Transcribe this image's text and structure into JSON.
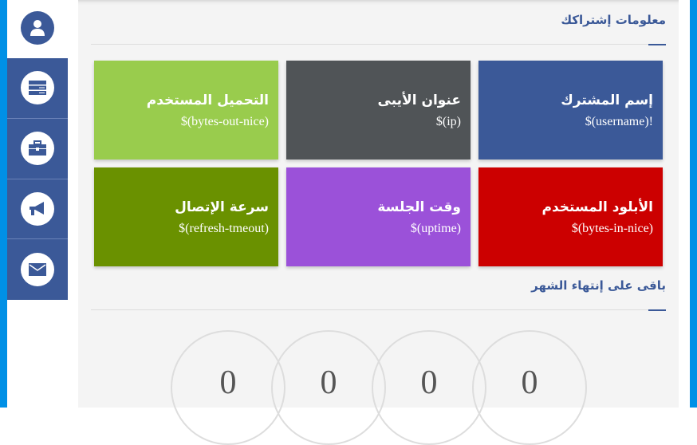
{
  "sidebar": {
    "items": [
      {
        "icon": "user-icon"
      },
      {
        "icon": "server-icon"
      },
      {
        "icon": "briefcase-icon"
      },
      {
        "icon": "megaphone-icon"
      },
      {
        "icon": "envelope-icon"
      }
    ]
  },
  "colors": {
    "accent": "#3b5998",
    "strip": "#0090e6"
  },
  "section1": {
    "title": "معلومات إشتراكك"
  },
  "cards": [
    {
      "title": "إسم المشترك",
      "value": "$(username)!",
      "color": "#3b5998"
    },
    {
      "title": "عنوان الأيبى",
      "value": "$(ip)",
      "color": "#505457"
    },
    {
      "title": "التحميل المستخدم",
      "value": "$(bytes-out-nice)",
      "color": "#99cc4d"
    },
    {
      "title": "الأبلود المستخدم",
      "value": "$(bytes-in-nice)",
      "color": "#cc0000"
    },
    {
      "title": "وقت الجلسة",
      "value": "$(uptime)",
      "color": "#9b51d9"
    },
    {
      "title": "سرعة الإتصال",
      "value": "$(refresh-tmeout)",
      "color": "#6a9100"
    }
  ],
  "section2": {
    "title": "باقى على إنتهاء الشهر"
  },
  "countdown": [
    "0",
    "0",
    "0",
    "0"
  ]
}
